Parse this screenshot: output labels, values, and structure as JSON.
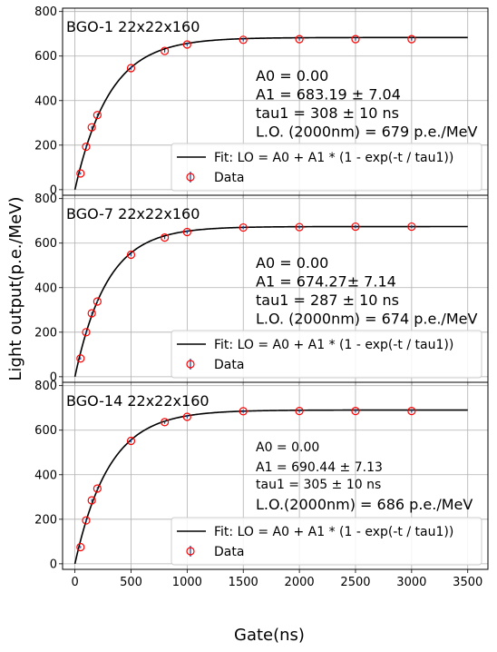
{
  "chart_data": {
    "type": "scatter",
    "xlabel": "Gate(ns)",
    "ylabel": "Light output(p.e./MeV)",
    "xlim": [
      -110,
      3680
    ],
    "ylim": [
      -25,
      815
    ],
    "xticks": [
      0,
      500,
      1000,
      1500,
      2000,
      2500,
      3000,
      3500
    ],
    "yticks": [
      0,
      200,
      400,
      600,
      800
    ],
    "grid": true,
    "legend_placement": "lower-right",
    "legend": {
      "fit_label": "Fit: LO = A0 + A1 * (1 - exp(-t / tau1))",
      "data_label": "Data"
    },
    "colors": {
      "data_marker": "#ff0000",
      "error_bar": "#1f3b8f",
      "fit_line": "#000000",
      "grid": "#b0b0b0"
    },
    "fit_range": [
      0,
      3500
    ],
    "panels": [
      {
        "title": "BGO-1 22x22x160",
        "annotation_style": "large",
        "annotations": [
          "A0 = 0.00",
          "A1 = 683.19 ± 7.04",
          "tau1 = 308 ± 10 ns",
          "L.O. (2000nm) = 679 p.e./MeV"
        ],
        "fit": {
          "A0": 0.0,
          "A1": 683.19,
          "tau1": 308
        },
        "data": {
          "x": [
            50,
            100,
            150,
            200,
            500,
            800,
            1000,
            1500,
            2000,
            2500,
            3000
          ],
          "y": [
            73,
            193,
            280,
            335,
            546,
            623,
            652,
            673,
            676,
            676,
            676
          ],
          "yerr": [
            5,
            6,
            6,
            7,
            7,
            7,
            7,
            7,
            7,
            7,
            7
          ]
        }
      },
      {
        "title": "BGO-7 22x22x160",
        "annotation_style": "large",
        "annotations": [
          "A0 = 0.00",
          "A1 = 674.27± 7.14",
          "tau1 = 287 ± 10 ns",
          "L.O. (2000nm) = 674 p.e./MeV"
        ],
        "fit": {
          "A0": 0.0,
          "A1": 674.27,
          "tau1": 287
        },
        "data": {
          "x": [
            50,
            100,
            150,
            200,
            500,
            800,
            1000,
            1500,
            2000,
            2500,
            3000
          ],
          "y": [
            82,
            200,
            285,
            338,
            548,
            625,
            650,
            670,
            672,
            674,
            674
          ],
          "yerr": [
            5,
            6,
            6,
            7,
            7,
            7,
            7,
            7,
            7,
            7,
            7
          ]
        }
      },
      {
        "title": "BGO-14 22x22x160",
        "annotation_style": "mixed",
        "annotations": [
          "A0 = 0.00",
          "A1 = 690.44 ± 7.13",
          "tau1 = 305 ± 10 ns",
          "L.O.(2000nm) = 686 p.e./MeV"
        ],
        "fit": {
          "A0": 0.0,
          "A1": 690.44,
          "tau1": 305
        },
        "data": {
          "x": [
            50,
            100,
            150,
            200,
            500,
            800,
            1000,
            1500,
            2000,
            2500,
            3000
          ],
          "y": [
            75,
            195,
            285,
            338,
            552,
            636,
            660,
            685,
            686,
            686,
            686
          ],
          "yerr": [
            5,
            6,
            6,
            7,
            7,
            7,
            7,
            7,
            7,
            7,
            7
          ]
        }
      }
    ]
  }
}
